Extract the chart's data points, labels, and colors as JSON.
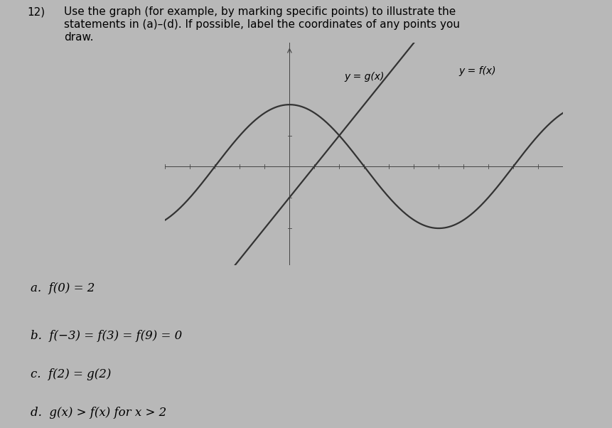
{
  "bg_color": "#b8b8b8",
  "curve_color": "#333333",
  "axis_color": "#444444",
  "label_f": "y = f(x)",
  "label_g": "y = g(x)",
  "xmin": -5,
  "xmax": 11,
  "ymin": -3.2,
  "ymax": 4.0,
  "g_slope": 1.0,
  "g_intercept": -1.0,
  "label_fontsize": 10,
  "statement_fontsize": 12,
  "title_fontsize": 11,
  "title_num": "12)",
  "title_text1": "Use the graph (for example, by marking specific points) to illustrate the",
  "title_text2": "statements in (a)–(d). If possible, label the coordinates of any points you",
  "title_text3": "draw.",
  "statements": [
    "a.  f(0) = 2",
    "b.  f(−3) = f(3) = f(9) = 0",
    "c.  f(2) = g(2)",
    "d.  g(x) > f(x) for x > 2"
  ]
}
